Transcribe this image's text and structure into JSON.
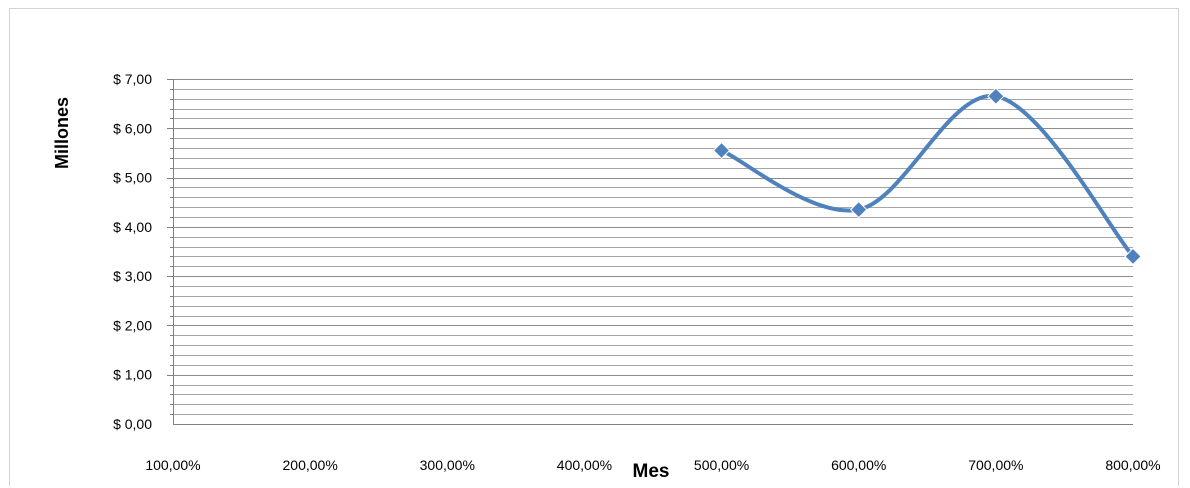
{
  "chart_data": {
    "type": "line",
    "title": "",
    "xlabel": "Mes",
    "ylabel": "Millones",
    "x_tick_labels": [
      "100,00%",
      "200,00%",
      "300,00%",
      "400,00%",
      "500,00%",
      "600,00%",
      "700,00%",
      "800,00%"
    ],
    "y_tick_labels": [
      "$ 0,00",
      "$ 1,00",
      "$ 2,00",
      "$ 3,00",
      "$ 4,00",
      "$ 5,00",
      "$ 6,00",
      "$ 7,00"
    ],
    "xlim": [
      1,
      8
    ],
    "ylim": [
      0,
      7
    ],
    "y_major_step": 1,
    "y_minor_step": 0.2,
    "grid": true,
    "legend": "none",
    "smooth": true,
    "marker": "diamond",
    "series": [
      {
        "x": [
          5,
          6,
          7,
          8
        ],
        "values": [
          5.55,
          4.35,
          6.65,
          3.4
        ],
        "color": "#4f81bd"
      }
    ]
  }
}
